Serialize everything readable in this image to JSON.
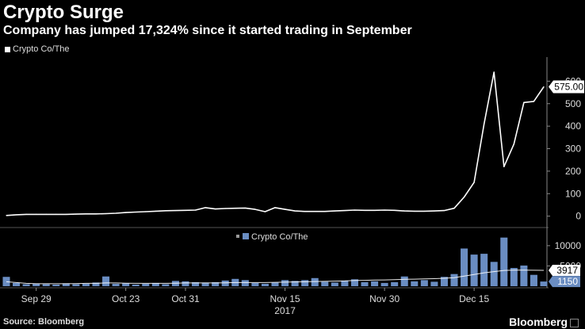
{
  "header": {
    "title": "Crypto Surge",
    "subtitle": "Company has jumped 17,324% since it started trading in September"
  },
  "footer": {
    "source": "Source: Bloomberg",
    "brand": "Bloomberg"
  },
  "colors": {
    "background": "#000000",
    "price_line": "#ffffff",
    "volume_bar": "#6a8dc2",
    "volume_avg_line": "#ffffff",
    "axis": "#888888"
  },
  "chart_data": [
    {
      "type": "line",
      "legend": "Crypto Co/The",
      "last_value_label": "575.00",
      "y_ticks": [
        0,
        100,
        200,
        300,
        400,
        500,
        600
      ],
      "ylim": [
        -40,
        700
      ],
      "x_label_idx": [
        3,
        12,
        18,
        28,
        38,
        47
      ],
      "x_labels": [
        "Sep 29",
        "Oct 23",
        "Oct 31",
        "Nov 15",
        "Nov 30",
        "Dec 15"
      ],
      "x_sub_label": "2017",
      "x_sub_label_idx": 28,
      "values": [
        3,
        6,
        8,
        8,
        8,
        8,
        8,
        9,
        10,
        10,
        11,
        13,
        16,
        18,
        20,
        22,
        24,
        25,
        26,
        27,
        38,
        32,
        34,
        35,
        36,
        30,
        20,
        38,
        30,
        23,
        21,
        21,
        21,
        23,
        25,
        27,
        26,
        26,
        27,
        26,
        23,
        22,
        22,
        23,
        25,
        35,
        85,
        150,
        410,
        640,
        220,
        320,
        505,
        510,
        575
      ]
    },
    {
      "type": "bar",
      "legend": "Crypto Co/The",
      "y_ticks": [
        10000,
        5000
      ],
      "ylim": [
        0,
        13500
      ],
      "avg_label": "3917",
      "last_label": "1150",
      "values": [
        2300,
        800,
        500,
        600,
        500,
        400,
        700,
        500,
        600,
        900,
        2400,
        600,
        700,
        400,
        600,
        800,
        500,
        1300,
        1200,
        1000,
        900,
        1000,
        1400,
        1800,
        1500,
        800,
        600,
        900,
        1500,
        1300,
        1500,
        2000,
        1100,
        900,
        1400,
        1700,
        1000,
        1200,
        800,
        1000,
        2400,
        1200,
        1500,
        1100,
        2300,
        3000,
        9300,
        7800,
        8000,
        6000,
        12000,
        4500,
        5100,
        2800,
        1150
      ],
      "avg_values": [
        1100,
        900,
        700,
        600,
        600,
        600,
        600,
        650,
        700,
        700,
        800,
        800,
        750,
        700,
        700,
        700,
        700,
        750,
        800,
        800,
        800,
        800,
        850,
        900,
        900,
        900,
        900,
        950,
        1000,
        1050,
        1100,
        1150,
        1200,
        1250,
        1300,
        1400,
        1450,
        1500,
        1550,
        1600,
        1700,
        1750,
        1800,
        1850,
        1950,
        2100,
        2500,
        2900,
        3300,
        3600,
        3900,
        3950,
        3950,
        3930,
        3917
      ]
    }
  ]
}
